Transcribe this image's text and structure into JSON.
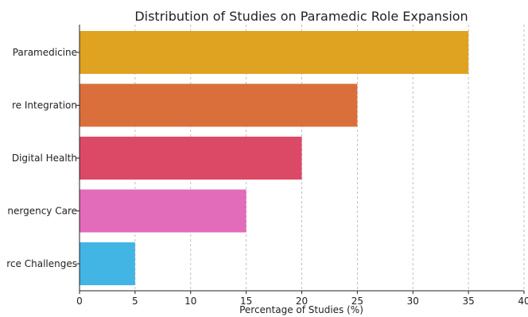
{
  "chart_data": {
    "type": "bar",
    "orientation": "horizontal",
    "title": "Distribution of Studies on Paramedic Role Expansion",
    "xlabel": "Percentage of Studies (%)",
    "ylabel": "",
    "xlim": [
      0,
      40
    ],
    "xticks": [
      0,
      5,
      10,
      15,
      20,
      25,
      30,
      35,
      40
    ],
    "grid": "vertical-dashed",
    "categories": [
      "Community Paramedicine",
      "Primary Care Integration",
      "Digital Health",
      "Emergency Care",
      "Workforce Challenges"
    ],
    "values": [
      35,
      25,
      20,
      15,
      5
    ],
    "colors": [
      "#DFA321",
      "#DB6F3B",
      "#DC4966",
      "#E26BBA",
      "#42B5E4"
    ],
    "visible_category_labels": [
      "Paramedicine",
      "re Integration",
      "Digital Health",
      "nergency Care",
      "rce Challenges"
    ]
  }
}
